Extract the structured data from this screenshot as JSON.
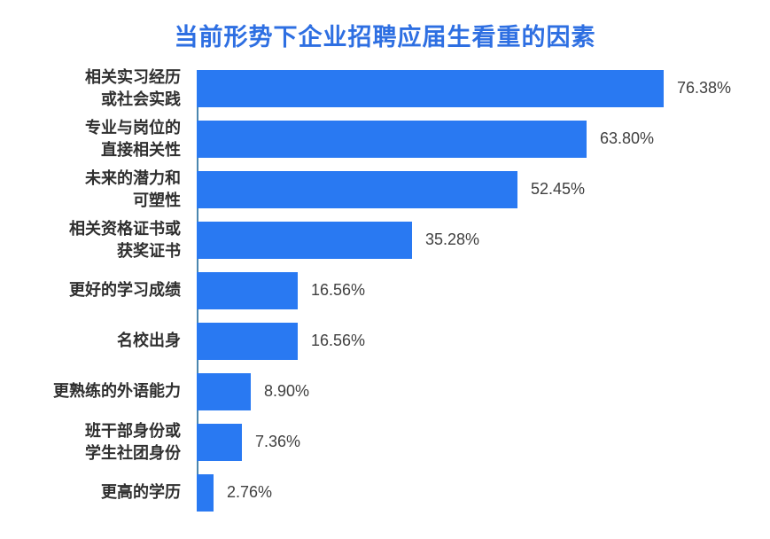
{
  "title": "当前形势下企业招聘应届生看重的因素",
  "colors": {
    "bar": "#2979f2",
    "title_text": "#2e6fe2",
    "axis_line": "#4b86ae",
    "category_text": "#2f2f2f",
    "value_text": "#404040",
    "background": "#ffffff"
  },
  "chart_data": {
    "type": "bar",
    "orientation": "horizontal",
    "title": "当前形势下企业招聘应届生看重的因素",
    "categories": [
      "相关实习经历\n或社会实践",
      "专业与岗位的\n直接相关性",
      "未来的潜力和\n可塑性",
      "相关资格证书或\n获奖证书",
      "更好的学习成绩",
      "名校出身",
      "更熟练的外语能力",
      "班干部身份或\n学生社团身份",
      "更高的学历"
    ],
    "values": [
      76.38,
      63.8,
      52.45,
      35.28,
      16.56,
      16.56,
      8.9,
      7.36,
      2.76
    ],
    "value_labels": [
      "76.38%",
      "63.80%",
      "52.45%",
      "35.28%",
      "16.56%",
      "16.56%",
      "8.90%",
      "7.36%",
      "2.76%"
    ],
    "xlabel": "",
    "ylabel": "",
    "xlim": [
      0,
      92
    ],
    "grid": false,
    "legend": false,
    "bar_color": "#2979f2"
  }
}
